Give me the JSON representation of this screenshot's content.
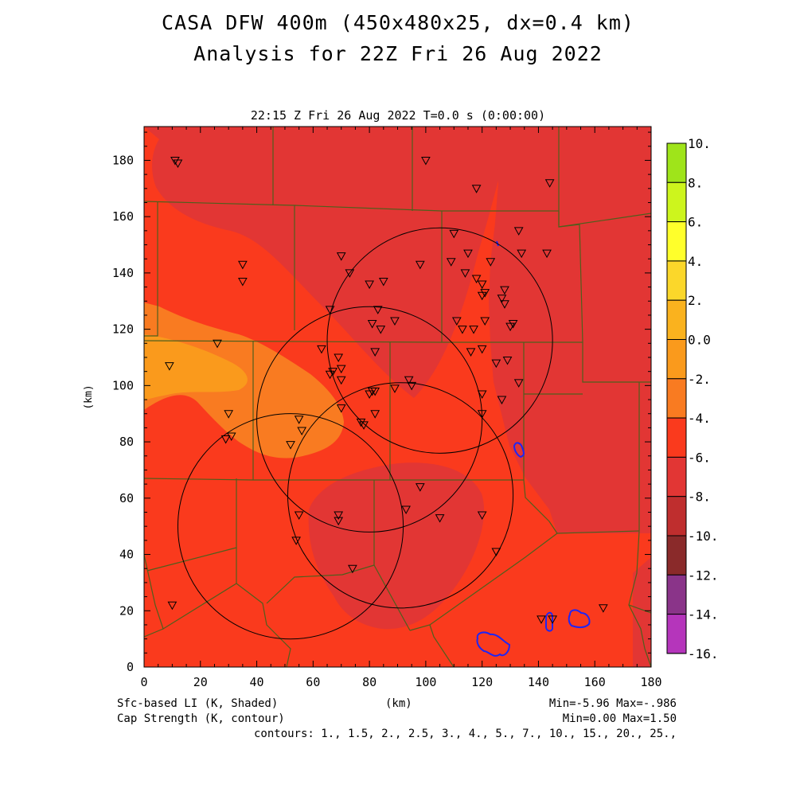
{
  "header": {
    "title_line1": "CASA DFW 400m (450x480x25, dx=0.4 km)",
    "title_line2": "Analysis for 22Z Fri 26 Aug 2022",
    "valid_time": "22:15 Z Fri 26 Aug 2022   T=0.0 s (0:00:00)"
  },
  "axes": {
    "x_ticks": [
      "0",
      "20",
      "40",
      "60",
      "80",
      "100",
      "120",
      "140",
      "160",
      "180"
    ],
    "y_ticks": [
      "0",
      "20",
      "40",
      "60",
      "80",
      "100",
      "120",
      "140",
      "160",
      "180"
    ],
    "x_label": "(km)",
    "y_label": "(km)",
    "x_range": [
      0,
      180
    ],
    "y_range": [
      0,
      192
    ]
  },
  "colorbar": {
    "labels": [
      "10.",
      "8.",
      "6.",
      "4.",
      "2.",
      "0.0",
      "-2.",
      "-4.",
      "-6.",
      "-8.",
      "-10.",
      "-12.",
      "-14.",
      "-16."
    ],
    "colors": [
      "#9fe41a",
      "#cdf51d",
      "#ffff2b",
      "#fbd72a",
      "#fab21e",
      "#fa9a1c",
      "#f97b21",
      "#fa3a1d",
      "#e23634",
      "#bf2e2e",
      "#8a2a2a",
      "#8a3489",
      "#b535bb",
      "#dc44e4"
    ]
  },
  "footer": {
    "left_line1": "Sfc-based LI (K, Shaded)",
    "left_line2": "Cap Strength (K, contour)",
    "center_label": "(km)",
    "right_line1": "Min=-5.96 Max=-.986",
    "right_line2": "Min=0.00 Max=1.50",
    "contours": "contours: 1., 1.5, 2., 2.5, 3., 4., 5., 7., 10., 15., 20., 25.,"
  },
  "map": {
    "fill_colors": {
      "base": "#fa3a1d",
      "minus6_region": "#e23634",
      "orange_region": "#f97b21",
      "light_orange_region": "#fa9a1c",
      "county_lines": "#4f5f1c",
      "cap_contour": "#1e25f5"
    },
    "radar_circles": [
      {
        "x": 105,
        "y": 116,
        "r": 40
      },
      {
        "x": 80,
        "y": 88,
        "r": 40
      },
      {
        "x": 91,
        "y": 61,
        "r": 40
      },
      {
        "x": 52,
        "y": 50,
        "r": 40
      }
    ],
    "stations": [
      [
        11,
        180
      ],
      [
        12,
        179
      ],
      [
        100,
        180
      ],
      [
        118,
        170
      ],
      [
        144,
        172
      ],
      [
        110,
        154
      ],
      [
        133,
        155
      ],
      [
        115,
        147
      ],
      [
        134,
        147
      ],
      [
        143,
        147
      ],
      [
        70,
        146
      ],
      [
        35,
        143
      ],
      [
        98,
        143
      ],
      [
        109,
        144
      ],
      [
        123,
        144
      ],
      [
        73,
        140
      ],
      [
        114,
        140
      ],
      [
        118,
        138
      ],
      [
        85,
        137
      ],
      [
        35,
        137
      ],
      [
        80,
        136
      ],
      [
        120,
        136
      ],
      [
        121,
        133
      ],
      [
        128,
        134
      ],
      [
        120,
        132
      ],
      [
        127,
        131
      ],
      [
        128,
        129
      ],
      [
        66,
        127
      ],
      [
        83,
        127
      ],
      [
        89,
        123
      ],
      [
        81,
        122
      ],
      [
        84,
        120
      ],
      [
        111,
        123
      ],
      [
        121,
        123
      ],
      [
        131,
        122
      ],
      [
        130,
        121
      ],
      [
        113,
        120
      ],
      [
        117,
        120
      ],
      [
        26,
        115
      ],
      [
        63,
        113
      ],
      [
        116,
        112
      ],
      [
        120,
        113
      ],
      [
        82,
        112
      ],
      [
        69,
        110
      ],
      [
        125,
        108
      ],
      [
        129,
        109
      ],
      [
        9,
        107
      ],
      [
        67,
        105
      ],
      [
        70,
        106
      ],
      [
        66,
        104
      ],
      [
        70,
        102
      ],
      [
        133,
        101
      ],
      [
        94,
        102
      ],
      [
        95,
        100
      ],
      [
        81,
        98
      ],
      [
        82,
        98
      ],
      [
        80,
        97
      ],
      [
        89,
        99
      ],
      [
        120,
        97
      ],
      [
        127,
        95
      ],
      [
        70,
        92
      ],
      [
        30,
        90
      ],
      [
        120,
        90
      ],
      [
        82,
        90
      ],
      [
        55,
        88
      ],
      [
        77,
        87
      ],
      [
        78,
        86
      ],
      [
        56,
        84
      ],
      [
        31,
        82
      ],
      [
        29,
        81
      ],
      [
        52,
        79
      ],
      [
        98,
        64
      ],
      [
        55,
        54
      ],
      [
        93,
        56
      ],
      [
        69,
        54
      ],
      [
        69,
        52
      ],
      [
        105,
        53
      ],
      [
        120,
        54
      ],
      [
        54,
        45
      ],
      [
        125,
        41
      ],
      [
        74,
        35
      ],
      [
        141,
        17
      ],
      [
        145,
        17
      ],
      [
        163,
        21
      ],
      [
        10,
        22
      ]
    ]
  }
}
